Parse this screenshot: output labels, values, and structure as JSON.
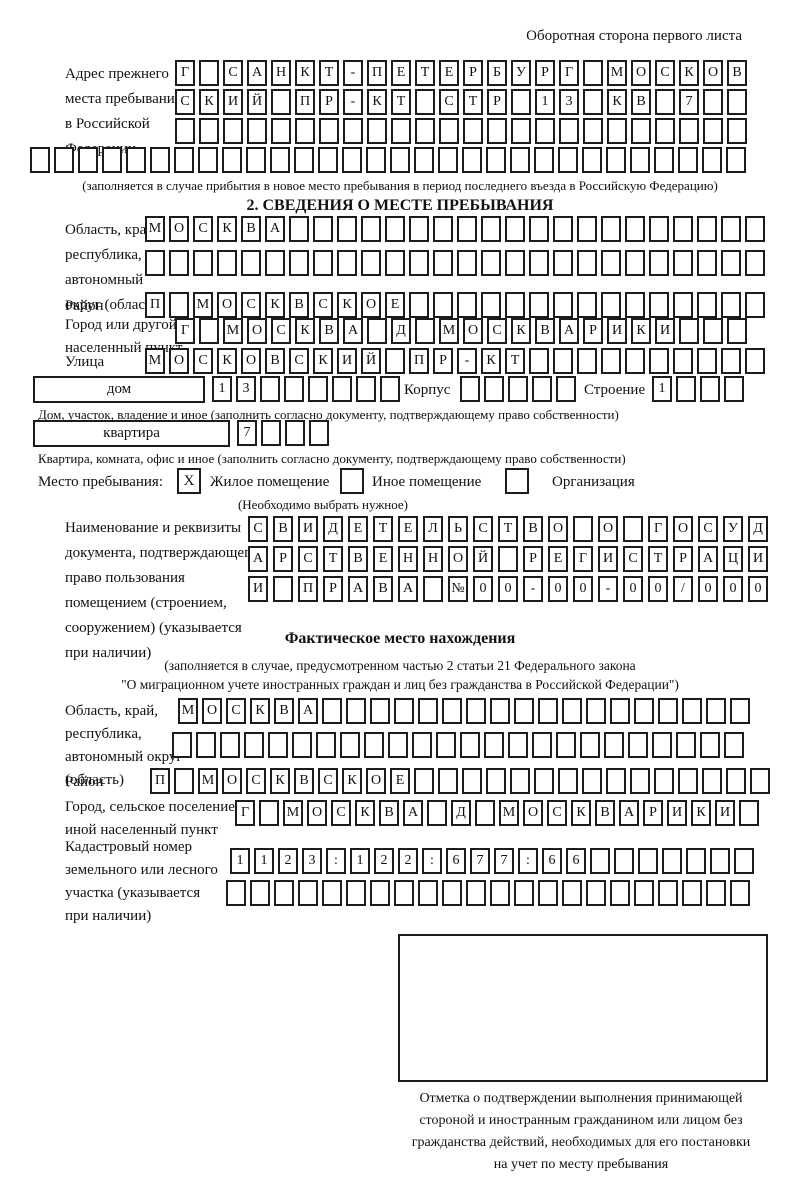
{
  "page_label": "Оборотная сторона первого листа",
  "prev_address": {
    "label_lines": [
      "Адрес прежнего",
      "места пребывания",
      "в Российской",
      "Федерации"
    ],
    "rows": [
      {
        "len": 24,
        "text": "Г САНКТ-ПЕТЕРБУРГ МОСКОВ"
      },
      {
        "len": 24,
        "text": "СКИЙ ПР-КТ СТР 13 КВ 7"
      },
      {
        "len": 24,
        "text": ""
      },
      {
        "len": 30,
        "text": ""
      }
    ],
    "note": "(заполняется в случае прибытия в новое место пребывания в период последнего въезда в Российскую Федерацию)"
  },
  "section2": {
    "title": "2. СВЕДЕНИЯ О МЕСТЕ ПРЕБЫВАНИЯ",
    "region": {
      "label_lines": [
        "Область, край,",
        "республика,",
        "автономный",
        "округ (область)"
      ],
      "rows": [
        {
          "len": 26,
          "text": "МОСКВА"
        },
        {
          "len": 26,
          "text": ""
        }
      ]
    },
    "district": {
      "label": "Район",
      "row": {
        "len": 26,
        "text": "П МОСКВСКОЕ"
      }
    },
    "city": {
      "label_lines": [
        "Город или другой",
        "населенный пункт"
      ],
      "row": {
        "len": 24,
        "text": "Г МОСКВА Д МОСКВАРИКИ"
      }
    },
    "street": {
      "label": "Улица",
      "row": {
        "len": 26,
        "text": "МОСКОВСКИЙ ПР-КТ"
      }
    },
    "house": {
      "label": "дом",
      "cells": {
        "len": 8,
        "text": "13"
      },
      "korpus_label": "Корпус",
      "korpus_cells": {
        "len": 5,
        "text": ""
      },
      "stroenie_label": "Строение",
      "stroenie_cells": {
        "len": 4,
        "text": "1"
      },
      "note": "Дом, участок, владение и иное (заполнить согласно документу, подтверждающему право собственности)"
    },
    "apartment": {
      "label": "квартира",
      "cells": {
        "len": 4,
        "text": "7"
      },
      "note": "Квартира, комната, офис и иное (заполнить согласно документу, подтверждающему право собственности)"
    },
    "stay_type": {
      "label": "Место пребывания:",
      "options": [
        {
          "label": "Жилое помещение",
          "mark": "X"
        },
        {
          "label": "Иное помещение",
          "mark": ""
        },
        {
          "label": "Организация",
          "mark": ""
        }
      ],
      "note": "(Необходимо выбрать нужное)"
    },
    "document": {
      "label_lines": [
        "Наименование и реквизиты",
        "документа, подтверждающего",
        "право пользования",
        "помещением (строением,",
        "сооружением) (указывается",
        "при наличии)"
      ],
      "rows": [
        {
          "len": 21,
          "text": "СВИДЕТЕЛЬСТВО О ГОСУД"
        },
        {
          "len": 21,
          "text": "АРСТВЕННОЙ РЕГИСТРАЦИ"
        },
        {
          "len": 21,
          "text": "И ПРАВА №00-00-00/000"
        }
      ]
    }
  },
  "section3": {
    "title": "Фактическое место нахождения",
    "note_lines": [
      "(заполняется в случае, предусмотренном частью 2 статьи 21 Федерального закона",
      "\"О миграционном учете иностранных граждан и лиц без гражданства в Российской Федерации\")"
    ],
    "region": {
      "label_lines": [
        "Область, край,",
        "республика,",
        "автономный округ",
        "(область)"
      ],
      "rows": [
        {
          "len": 24,
          "text": "МОСКВА"
        },
        {
          "len": 24,
          "text": ""
        }
      ]
    },
    "district": {
      "label": "Район",
      "row": {
        "len": 26,
        "text": "П МОСКВСКОЕ"
      }
    },
    "city": {
      "label_lines": [
        "Город, сельское поселение,",
        "иной населенный пункт"
      ],
      "row": {
        "len": 22,
        "text": "Г МОСКВА Д МОСКВАРИКИ"
      }
    },
    "cadastre": {
      "label_lines": [
        "Кадастровый номер",
        "земельного или лесного",
        "участка (указывается",
        "при наличии)"
      ],
      "rows": [
        {
          "len": 22,
          "text": "1123:122:677:66"
        },
        {
          "len": 22,
          "text": ""
        }
      ]
    },
    "stamp_caption_lines": [
      "Отметка о подтверждении выполнения принимающей",
      "стороной и иностранным гражданином или лицом без",
      "гражданства действий, необходимых для его постановки",
      "на учет по месту пребывания"
    ]
  }
}
